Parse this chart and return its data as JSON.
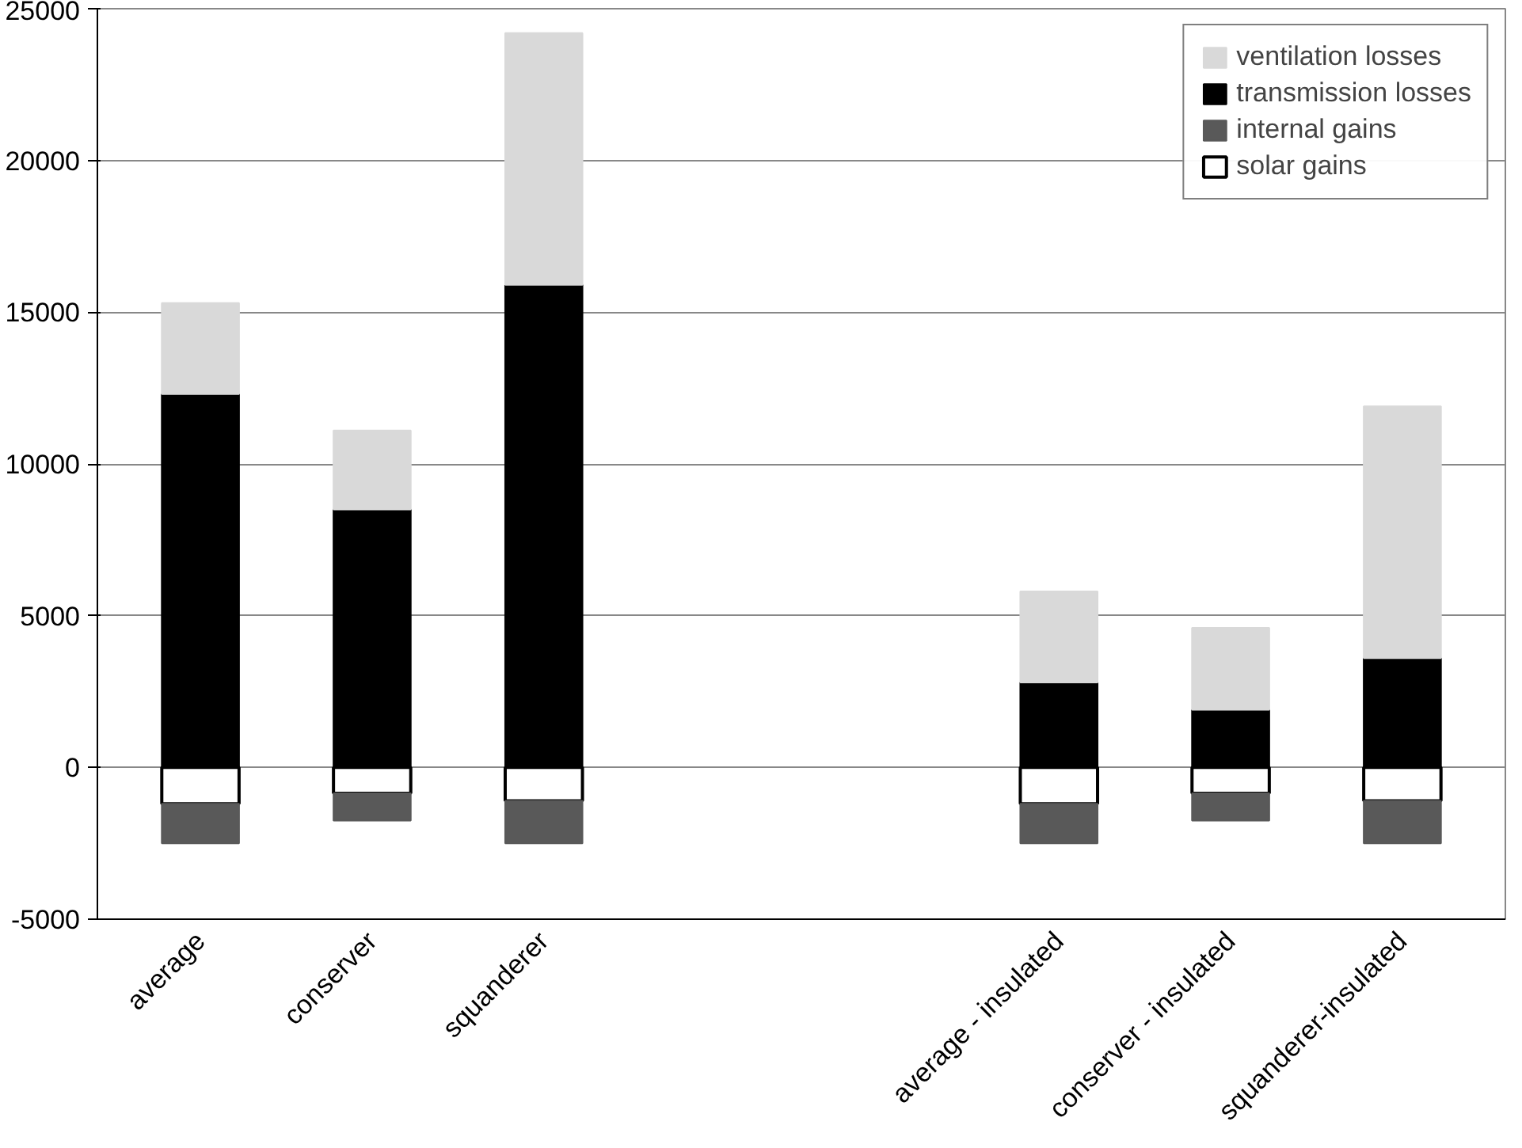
{
  "chart_data": {
    "type": "bar",
    "stacked": true,
    "categories": [
      "average",
      "conserver",
      "squanderer",
      null,
      null,
      "average - insulated",
      "conserver - insulated",
      "squanderer-insulated"
    ],
    "series": [
      {
        "name": "transmission losses",
        "color": "#000000",
        "values": [
          12300,
          8500,
          15900,
          null,
          null,
          2800,
          1900,
          3600
        ]
      },
      {
        "name": "ventilation losses",
        "color": "#d9d9d9",
        "values": [
          3000,
          2600,
          8300,
          null,
          null,
          3000,
          2700,
          8300
        ]
      },
      {
        "name": "solar gains",
        "color": "#ffffff",
        "values": [
          -1200,
          -850,
          -1100,
          null,
          null,
          -1200,
          -850,
          -1100
        ]
      },
      {
        "name": "internal gains",
        "color": "#595959",
        "values": [
          -1300,
          -900,
          -1400,
          null,
          null,
          -1300,
          -900,
          -1400
        ]
      }
    ],
    "ylim": [
      -5000,
      25000
    ],
    "yticks": [
      -5000,
      0,
      5000,
      10000,
      15000,
      20000,
      25000
    ],
    "grid": "y",
    "legend": "top right"
  }
}
